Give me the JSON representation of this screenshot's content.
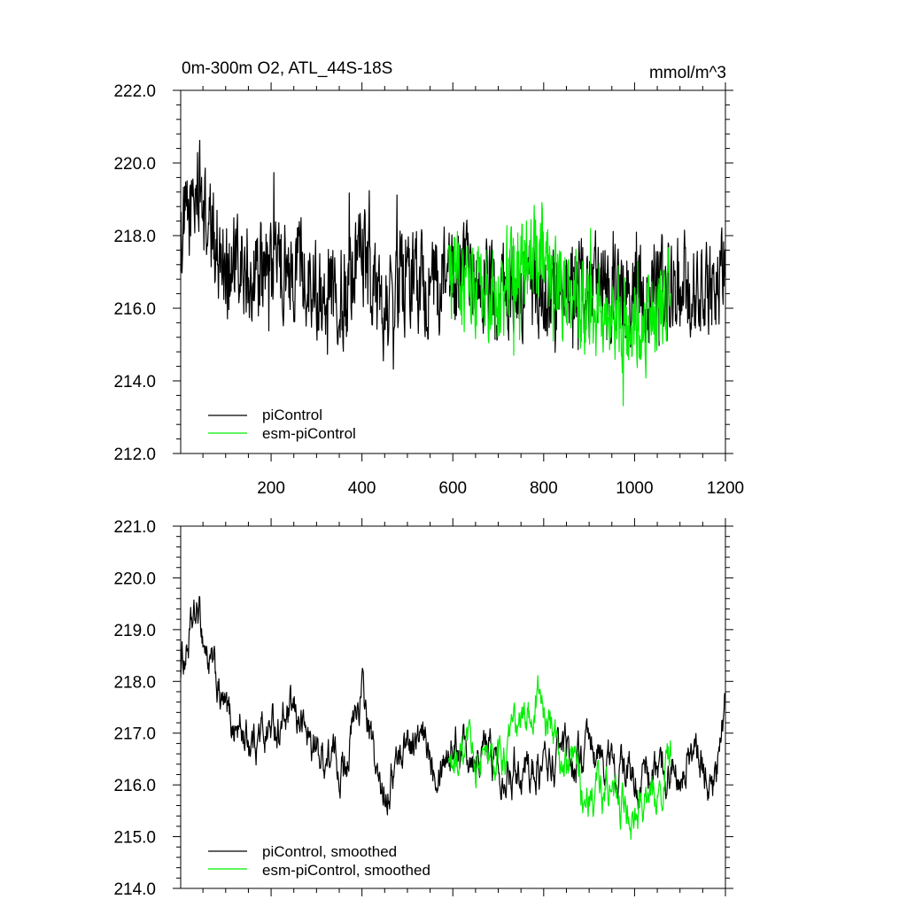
{
  "chart_data": [
    {
      "type": "line",
      "title": "0m-300m O2, ATL_44S-18S",
      "units": "mmol/m^3",
      "xlim": [
        1,
        1200
      ],
      "ylim": [
        212.0,
        222.0
      ],
      "x_ticks": [
        200,
        400,
        600,
        800,
        1000,
        1200
      ],
      "y_ticks": [
        "212.0",
        "214.0",
        "216.0",
        "218.0",
        "220.0",
        "222.0"
      ],
      "legend_position": "bottom-left",
      "series": [
        {
          "name": "piControl",
          "color": "#000000",
          "x_start": 1,
          "x_end": 1200,
          "anchors": [
            [
              1,
              218.0
            ],
            [
              20,
              218.6
            ],
            [
              40,
              219.4
            ],
            [
              60,
              218.2
            ],
            [
              100,
              217.2
            ],
            [
              150,
              216.9
            ],
            [
              200,
              217.1
            ],
            [
              260,
              217.2
            ],
            [
              300,
              216.6
            ],
            [
              360,
              216.5
            ],
            [
              400,
              217.6
            ],
            [
              440,
              215.9
            ],
            [
              500,
              216.9
            ],
            [
              560,
              216.6
            ],
            [
              620,
              216.8
            ],
            [
              700,
              216.5
            ],
            [
              780,
              216.3
            ],
            [
              860,
              216.5
            ],
            [
              920,
              216.6
            ],
            [
              1000,
              216.2
            ],
            [
              1060,
              216.4
            ],
            [
              1120,
              216.7
            ],
            [
              1180,
              216.2
            ],
            [
              1200,
              217.4
            ]
          ]
        },
        {
          "name": "esm-piControl",
          "color": "#00ee00",
          "x_start": 591,
          "x_end": 1080,
          "anchors": [
            [
              591,
              216.8
            ],
            [
              650,
              216.4
            ],
            [
              700,
              216.3
            ],
            [
              750,
              217.3
            ],
            [
              790,
              217.6
            ],
            [
              850,
              216.3
            ],
            [
              900,
              215.9
            ],
            [
              950,
              216.0
            ],
            [
              1000,
              215.6
            ],
            [
              1040,
              215.7
            ],
            [
              1080,
              216.5
            ]
          ]
        }
      ]
    },
    {
      "type": "line",
      "xlim": [
        1,
        1200
      ],
      "ylim": [
        214.0,
        221.0
      ],
      "y_ticks": [
        "214.0",
        "215.0",
        "216.0",
        "217.0",
        "218.0",
        "219.0",
        "220.0",
        "221.0"
      ],
      "legend_position": "bottom-left",
      "series": [
        {
          "name": "piControl, smoothed",
          "color": "#000000",
          "x_start": 1,
          "x_end": 1200,
          "anchors": [
            [
              1,
              218.3
            ],
            [
              20,
              218.8
            ],
            [
              40,
              219.3
            ],
            [
              60,
              218.5
            ],
            [
              100,
              217.3
            ],
            [
              150,
              216.9
            ],
            [
              200,
              217.1
            ],
            [
              260,
              217.3
            ],
            [
              300,
              216.6
            ],
            [
              360,
              216.4
            ],
            [
              400,
              217.8
            ],
            [
              440,
              215.8
            ],
            [
              500,
              216.9
            ],
            [
              560,
              216.6
            ],
            [
              620,
              216.9
            ],
            [
              700,
              216.5
            ],
            [
              780,
              216.3
            ],
            [
              860,
              216.5
            ],
            [
              920,
              216.5
            ],
            [
              1000,
              216.1
            ],
            [
              1060,
              216.2
            ],
            [
              1120,
              216.6
            ],
            [
              1180,
              216.0
            ],
            [
              1200,
              217.5
            ]
          ]
        },
        {
          "name": "esm-piControl, smoothed",
          "color": "#00ee00",
          "x_start": 591,
          "x_end": 1080,
          "anchors": [
            [
              591,
              216.3
            ],
            [
              650,
              216.5
            ],
            [
              700,
              216.3
            ],
            [
              750,
              217.2
            ],
            [
              790,
              217.7
            ],
            [
              850,
              216.3
            ],
            [
              900,
              215.9
            ],
            [
              950,
              215.9
            ],
            [
              1000,
              215.3
            ],
            [
              1040,
              215.7
            ],
            [
              1080,
              216.5
            ]
          ]
        }
      ]
    }
  ]
}
